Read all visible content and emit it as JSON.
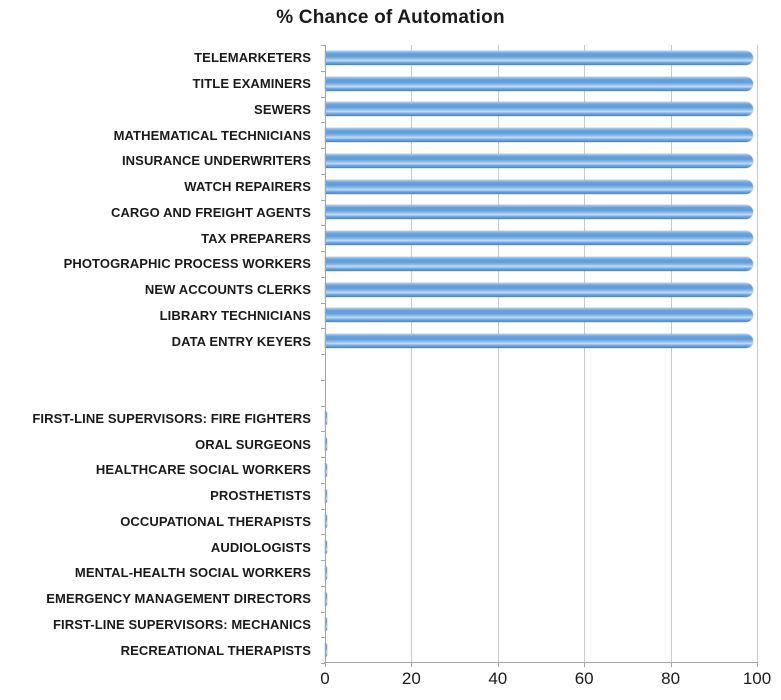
{
  "chart_data": {
    "type": "bar",
    "orientation": "horizontal",
    "title": "% Chance of Automation",
    "xlabel": "",
    "ylabel": "",
    "xlim": [
      0,
      100
    ],
    "xticks": [
      0,
      20,
      40,
      60,
      80,
      100
    ],
    "grid": "vertical",
    "legend": "none",
    "bar_color": "#5B9BD5",
    "gridline_color": "#C9C9C9",
    "axis_color": "#A6A6A6",
    "text_color": "#1A1A1A",
    "rows": [
      {
        "label": "TELEMARKETERS",
        "value": 99
      },
      {
        "label": "TITLE EXAMINERS",
        "value": 99
      },
      {
        "label": "SEWERS",
        "value": 99
      },
      {
        "label": "MATHEMATICAL TECHNICIANS",
        "value": 99
      },
      {
        "label": "INSURANCE UNDERWRITERS",
        "value": 99
      },
      {
        "label": "WATCH REPAIRERS",
        "value": 99
      },
      {
        "label": "CARGO AND FREIGHT AGENTS",
        "value": 99
      },
      {
        "label": "TAX PREPARERS",
        "value": 99
      },
      {
        "label": "PHOTOGRAPHIC PROCESS WORKERS",
        "value": 99
      },
      {
        "label": "NEW ACCOUNTS CLERKS",
        "value": 99
      },
      {
        "label": "LIBRARY TECHNICIANS",
        "value": 99
      },
      {
        "label": "DATA ENTRY KEYERS",
        "value": 99
      },
      {
        "label": "",
        "value": null
      },
      {
        "label": "",
        "value": null
      },
      {
        "label": "FIRST-LINE SUPERVISORS: FIRE FIGHTERS",
        "value": 0.4
      },
      {
        "label": "ORAL SURGEONS",
        "value": 0.4
      },
      {
        "label": "HEALTHCARE SOCIAL WORKERS",
        "value": 0.4
      },
      {
        "label": "PROSTHETISTS",
        "value": 0.4
      },
      {
        "label": "OCCUPATIONAL THERAPISTS",
        "value": 0.4
      },
      {
        "label": "AUDIOLOGISTS",
        "value": 0.4
      },
      {
        "label": "MENTAL-HEALTH SOCIAL WORKERS",
        "value": 0.4
      },
      {
        "label": "EMERGENCY MANAGEMENT DIRECTORS",
        "value": 0.4
      },
      {
        "label": "FIRST-LINE SUPERVISORS: MECHANICS",
        "value": 0.4
      },
      {
        "label": "RECREATIONAL THERAPISTS",
        "value": 0.4
      }
    ]
  }
}
